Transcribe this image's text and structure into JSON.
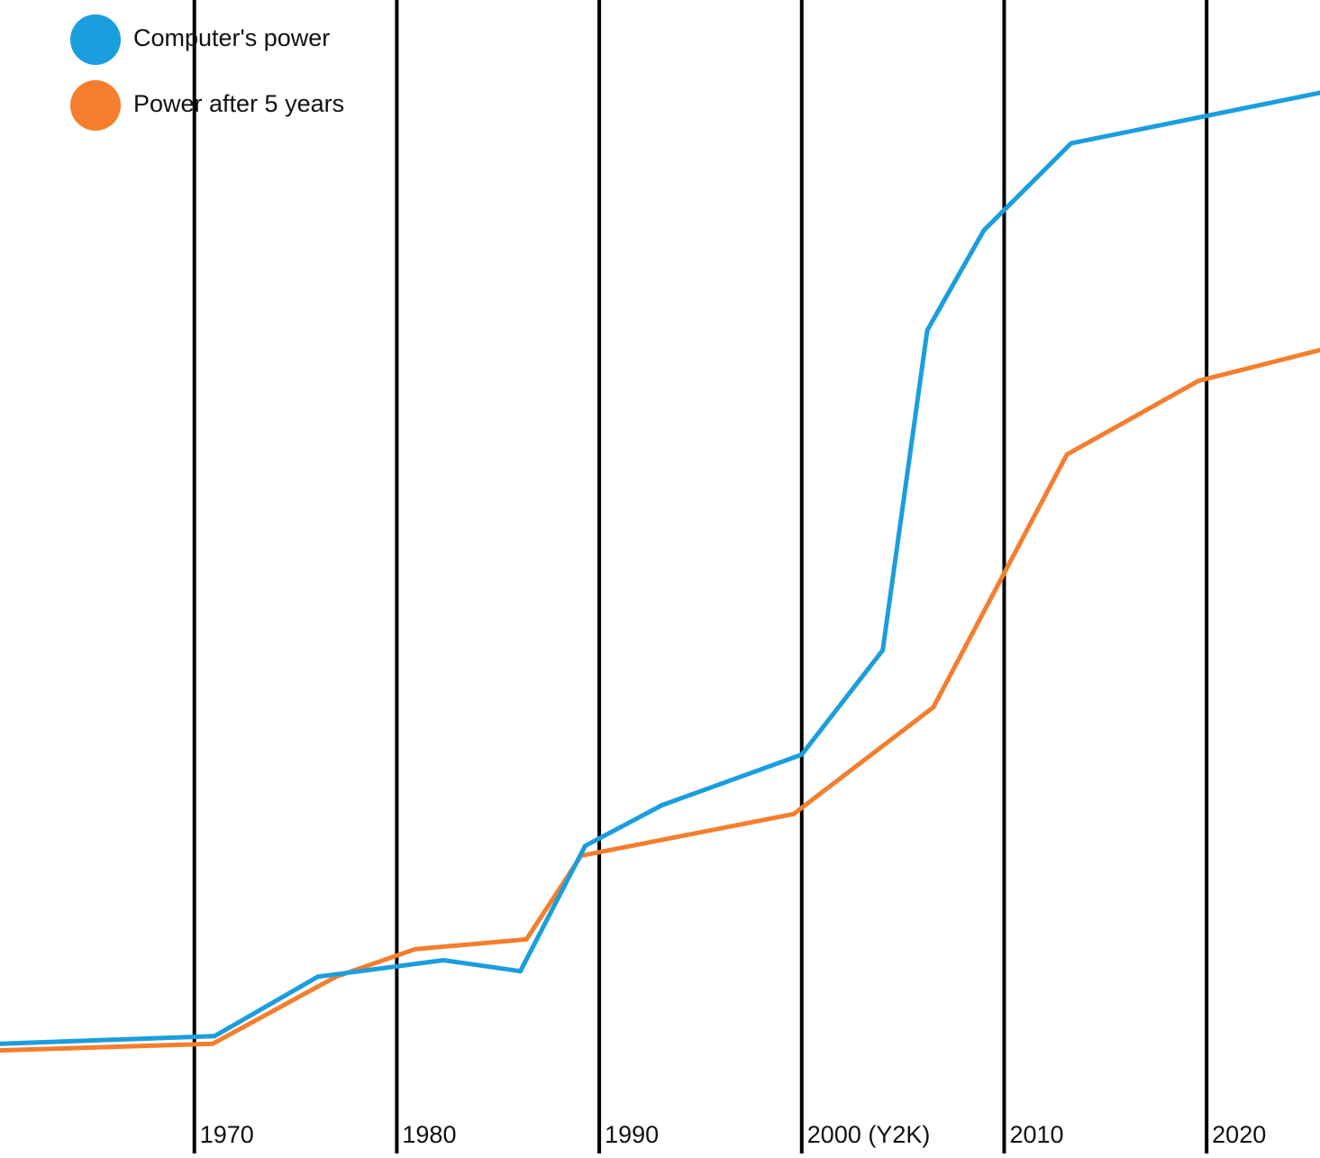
{
  "chart_data": {
    "type": "line",
    "title": "",
    "xlabel": "",
    "ylabel": "",
    "xlim": [
      1960.4,
      2025.6
    ],
    "ylim": [
      0,
      100
    ],
    "grid": "vertical lines at decade ticks",
    "legend_placement": "top-left",
    "tick_labels": [
      "1970",
      "1980",
      "1990",
      "2000 (Y2K)",
      "2010",
      "2020"
    ],
    "tick_values": [
      1970,
      1980,
      1990,
      2000,
      2010,
      2020
    ],
    "series": [
      {
        "name": "Computer's power",
        "color": "#1a9ede",
        "x": [
          1960.4,
          1971.0,
          1976.1,
          1982.3,
          1986.1,
          1989.3,
          1993.1,
          2000.0,
          2004.0,
          2006.2,
          2009.0,
          2013.3,
          2025.6
        ],
        "y": [
          6.7,
          7.4,
          12.8,
          14.3,
          13.3,
          24.7,
          28.4,
          33.0,
          42.5,
          71.6,
          80.7,
          88.6,
          93.2
        ]
      },
      {
        "name": "Power after 5 years",
        "color": "#f47e2e",
        "x": [
          1960.4,
          1970.9,
          1977.0,
          1980.9,
          1986.4,
          1989.1,
          1999.6,
          2006.5,
          2013.1,
          2019.6,
          2025.6
        ],
        "y": [
          6.1,
          6.7,
          12.8,
          15.3,
          16.2,
          23.8,
          27.6,
          37.3,
          60.3,
          67.0,
          69.8
        ]
      }
    ]
  }
}
